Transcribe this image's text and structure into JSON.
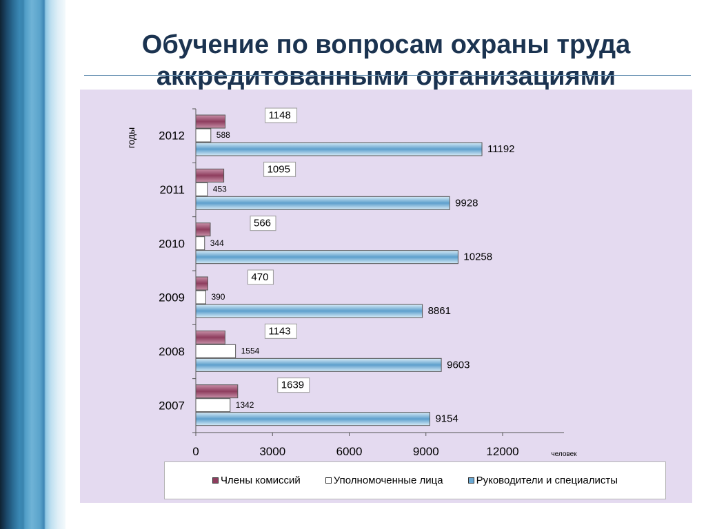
{
  "slide": {
    "title_line1": "Обучение по вопросам охраны труда",
    "title_line2": "аккредитованными организациями"
  },
  "chart_data": {
    "type": "bar",
    "orientation": "horizontal",
    "categories": [
      "2007",
      "2008",
      "2009",
      "2010",
      "2011",
      "2012"
    ],
    "series": [
      {
        "name": "Члены комиссий",
        "values": [
          1639,
          1143,
          470,
          566,
          1095,
          1148
        ],
        "color": "#b0607e"
      },
      {
        "name": "Уполномоченные лица",
        "values": [
          1342,
          1554,
          390,
          344,
          453,
          588
        ],
        "color": "#ffffff"
      },
      {
        "name": "Руководители и специалисты",
        "values": [
          9154,
          9603,
          8861,
          10258,
          9928,
          11192
        ],
        "color": "#8cbfe0"
      }
    ],
    "xlabel": "человек",
    "ylabel": "годы",
    "xlim": [
      0,
      14400
    ],
    "xticks": [
      0,
      3000,
      6000,
      9000,
      12000
    ],
    "grid": false,
    "legend_position": "bottom"
  }
}
